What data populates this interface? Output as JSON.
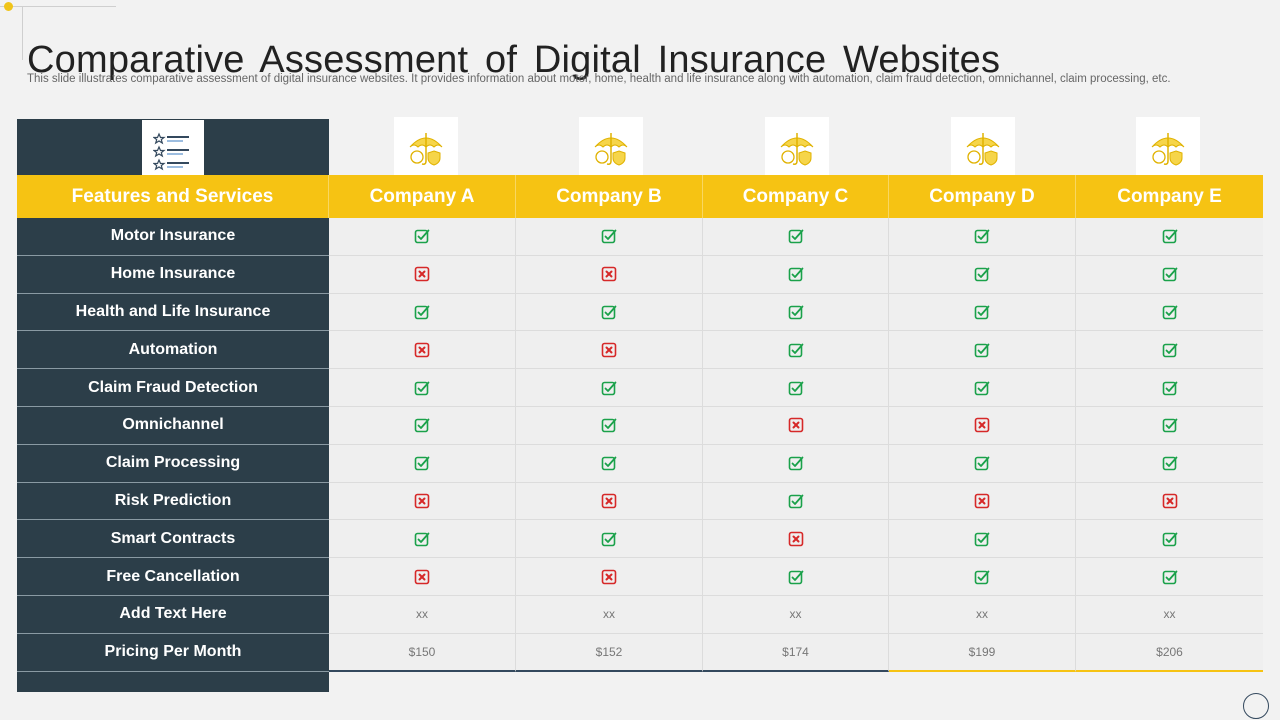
{
  "title": "Comparative Assessment of Digital Insurance Websites",
  "subtitle": "This slide illustrates comparative assessment of digital insurance websites. It provides information about motor, home, health and life insurance along with automation, claim fraud detection, omnichannel, claim processing, etc.",
  "colors": {
    "accent": "#f6c313",
    "dark": "#2c3e49",
    "check": "#1aa14a",
    "cross": "#d62828"
  },
  "table": {
    "header_label": "Features and Services",
    "companies": [
      "Company A",
      "Company B",
      "Company C",
      "Company D",
      "Company E"
    ],
    "rows": [
      {
        "feature": "Motor Insurance",
        "values": [
          "check",
          "check",
          "check",
          "check",
          "check"
        ]
      },
      {
        "feature": "Home Insurance",
        "values": [
          "cross",
          "cross",
          "check",
          "check",
          "check"
        ]
      },
      {
        "feature": "Health and Life Insurance",
        "values": [
          "check",
          "check",
          "check",
          "check",
          "check"
        ]
      },
      {
        "feature": "Automation",
        "values": [
          "cross",
          "cross",
          "check",
          "check",
          "check"
        ]
      },
      {
        "feature": "Claim Fraud Detection",
        "values": [
          "check",
          "check",
          "check",
          "check",
          "check"
        ]
      },
      {
        "feature": "Omnichannel",
        "values": [
          "check",
          "check",
          "cross",
          "cross",
          "check"
        ]
      },
      {
        "feature": "Claim Processing",
        "values": [
          "check",
          "check",
          "check",
          "check",
          "check"
        ]
      },
      {
        "feature": "Risk Prediction",
        "values": [
          "cross",
          "cross",
          "check",
          "cross",
          "cross"
        ]
      },
      {
        "feature": "Smart Contracts",
        "values": [
          "check",
          "check",
          "cross",
          "check",
          "check"
        ]
      },
      {
        "feature": "Free Cancellation",
        "values": [
          "cross",
          "cross",
          "check",
          "check",
          "check"
        ]
      },
      {
        "feature": "Add Text Here",
        "values": [
          "xx",
          "xx",
          "xx",
          "xx",
          "xx"
        ]
      },
      {
        "feature": "Pricing Per Month",
        "values": [
          "$150",
          "$152",
          "$174",
          "$199",
          "$206"
        ]
      }
    ]
  }
}
